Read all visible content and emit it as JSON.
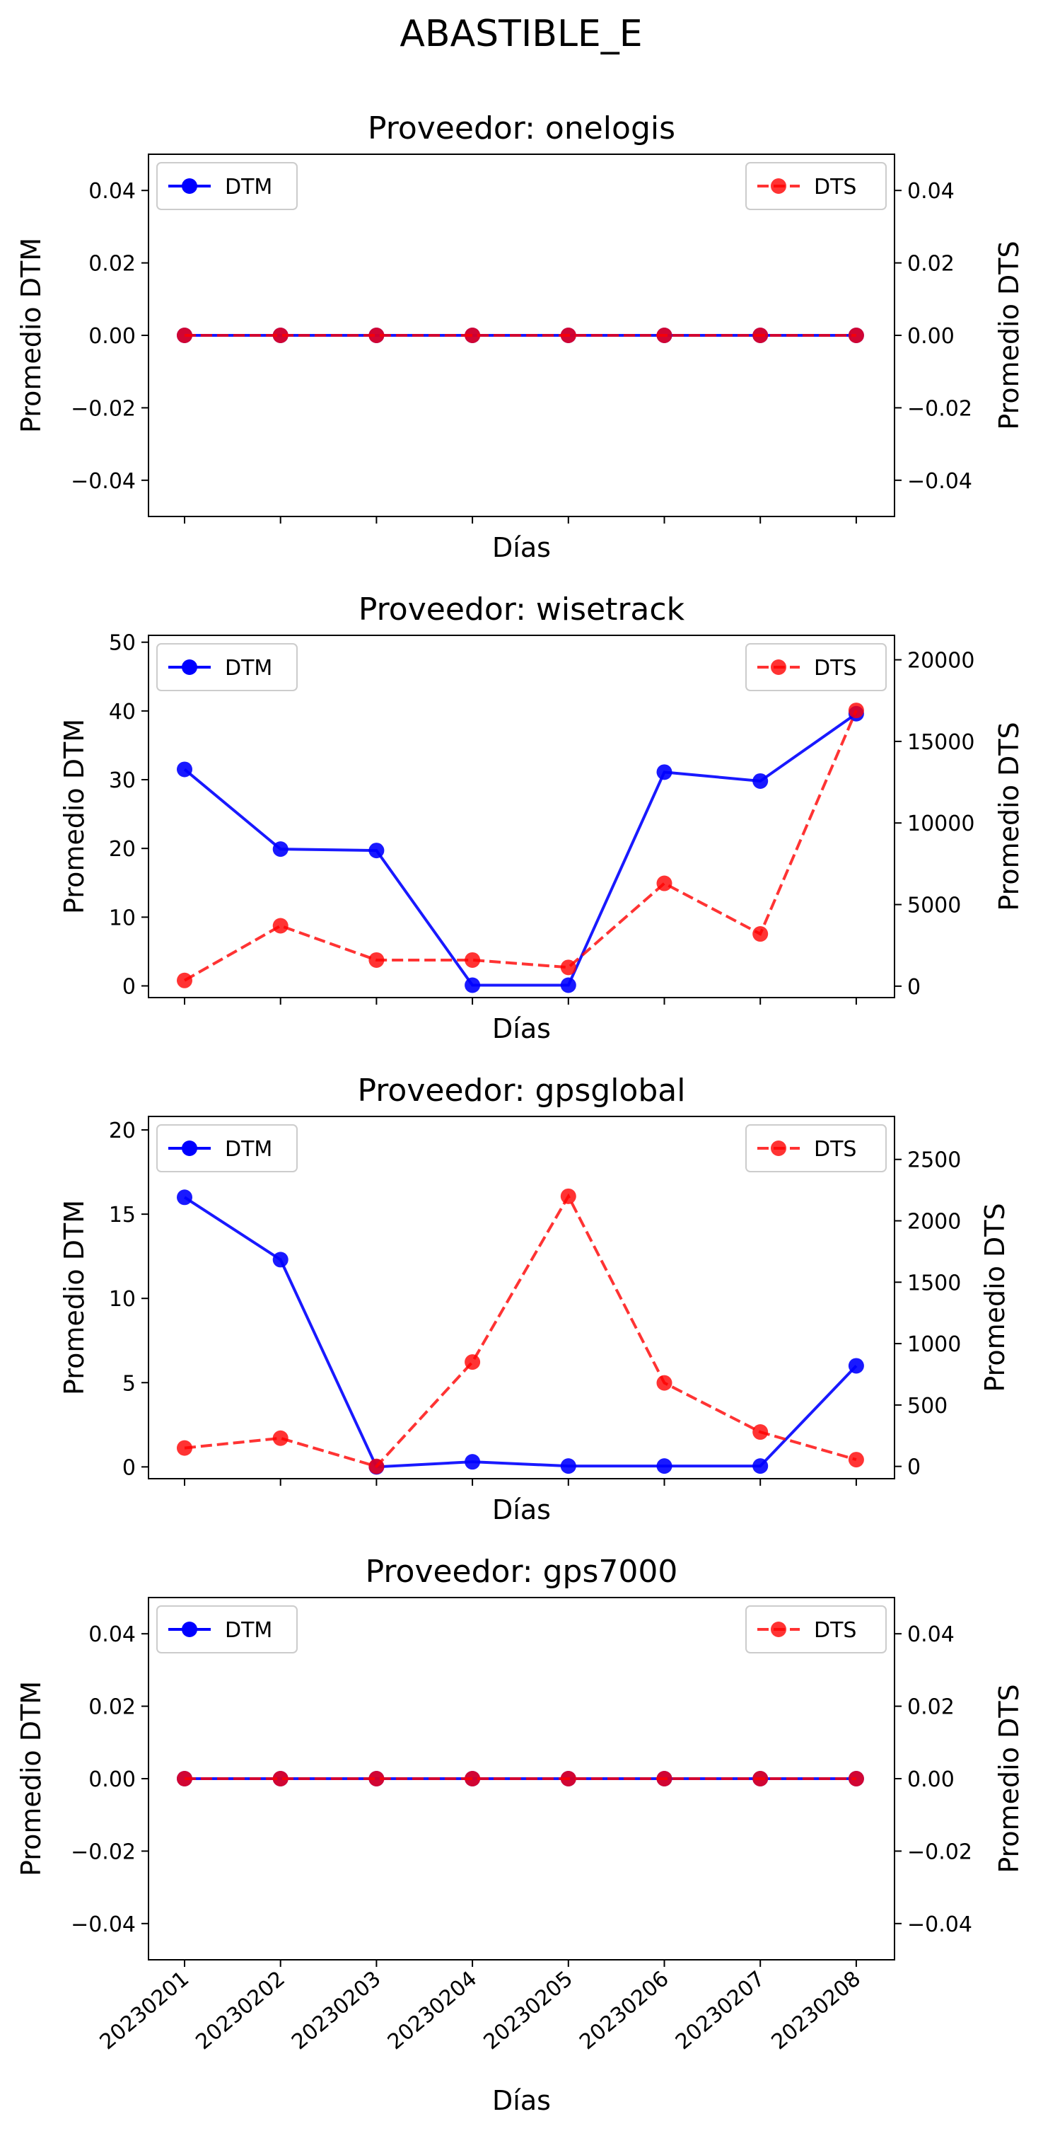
{
  "suptitle": "ABASTIBLE_E",
  "legend": {
    "dtm": "DTM",
    "dts": "DTS"
  },
  "colors": {
    "dtm": "#0000ff",
    "dts": "#ff0000"
  },
  "chart_data": [
    {
      "type": "line",
      "title": "Proveedor: onelogis",
      "xlabel": "Días",
      "ylabel_left": "Promedio DTM",
      "ylabel_right": "Promedio DTS",
      "categories": [
        "20230201",
        "20230202",
        "20230203",
        "20230204",
        "20230205",
        "20230206",
        "20230207",
        "20230208"
      ],
      "show_xticklabels": false,
      "left_axis": {
        "ylim": [
          -0.05,
          0.05
        ],
        "ticks": [
          -0.04,
          -0.02,
          0.0,
          0.02,
          0.04
        ],
        "tick_labels": [
          "−0.04",
          "−0.02",
          "0.00",
          "0.02",
          "0.04"
        ]
      },
      "right_axis": {
        "ylim": [
          -0.05,
          0.05
        ],
        "ticks": [
          -0.04,
          -0.02,
          0.0,
          0.02,
          0.04
        ],
        "tick_labels": [
          "−0.04",
          "−0.02",
          "0.00",
          "0.02",
          "0.04"
        ]
      },
      "series": [
        {
          "name": "DTM",
          "axis": "left",
          "style": "solid",
          "values": [
            0,
            0,
            0,
            0,
            0,
            0,
            0,
            0
          ]
        },
        {
          "name": "DTS",
          "axis": "right",
          "style": "dashed",
          "values": [
            0,
            0,
            0,
            0,
            0,
            0,
            0,
            0
          ]
        }
      ],
      "legend_placement": [
        "upper left",
        "upper right"
      ]
    },
    {
      "type": "line",
      "title": "Proveedor: wisetrack",
      "xlabel": "Días",
      "ylabel_left": "Promedio DTM",
      "ylabel_right": "Promedio DTS",
      "categories": [
        "20230201",
        "20230202",
        "20230203",
        "20230204",
        "20230205",
        "20230206",
        "20230207",
        "20230208"
      ],
      "show_xticklabels": false,
      "left_axis": {
        "ylim": [
          -1.7,
          51
        ],
        "ticks": [
          0,
          10,
          20,
          30,
          40,
          50
        ],
        "tick_labels": [
          "0",
          "10",
          "20",
          "30",
          "40",
          "50"
        ]
      },
      "right_axis": {
        "ylim": [
          -700,
          21500
        ],
        "ticks": [
          0,
          5000,
          10000,
          15000,
          20000
        ],
        "tick_labels": [
          "0",
          "5000",
          "10000",
          "15000",
          "20000"
        ]
      },
      "series": [
        {
          "name": "DTM",
          "axis": "left",
          "style": "solid",
          "values": [
            31.5,
            19.9,
            19.7,
            0.1,
            0.1,
            31.1,
            29.8,
            39.6
          ]
        },
        {
          "name": "DTS",
          "axis": "right",
          "style": "dashed",
          "values": [
            350,
            3700,
            1600,
            1600,
            1150,
            6300,
            3200,
            16900
          ]
        }
      ],
      "legend_placement": [
        "upper left",
        "upper right"
      ]
    },
    {
      "type": "line",
      "title": "Proveedor: gpsglobal",
      "xlabel": "Días",
      "ylabel_left": "Promedio DTM",
      "ylabel_right": "Promedio DTS",
      "categories": [
        "20230201",
        "20230202",
        "20230203",
        "20230204",
        "20230205",
        "20230206",
        "20230207",
        "20230208"
      ],
      "show_xticklabels": false,
      "left_axis": {
        "ylim": [
          -0.7,
          20.8
        ],
        "ticks": [
          0,
          5,
          10,
          15,
          20
        ],
        "tick_labels": [
          "0",
          "5",
          "10",
          "15",
          "20"
        ]
      },
      "right_axis": {
        "ylim": [
          -100,
          2850
        ],
        "ticks": [
          0,
          500,
          1000,
          1500,
          2000,
          2500
        ],
        "tick_labels": [
          "0",
          "500",
          "1000",
          "1500",
          "2000",
          "2500"
        ]
      },
      "series": [
        {
          "name": "DTM",
          "axis": "left",
          "style": "solid",
          "values": [
            16.0,
            12.3,
            0.0,
            0.3,
            0.05,
            0.05,
            0.05,
            6.0
          ]
        },
        {
          "name": "DTS",
          "axis": "right",
          "style": "dashed",
          "values": [
            150,
            230,
            0,
            850,
            2200,
            680,
            280,
            55
          ]
        }
      ],
      "legend_placement": [
        "upper left",
        "upper right"
      ]
    },
    {
      "type": "line",
      "title": "Proveedor: gps7000",
      "xlabel": "Días",
      "ylabel_left": "Promedio DTM",
      "ylabel_right": "Promedio DTS",
      "categories": [
        "20230201",
        "20230202",
        "20230203",
        "20230204",
        "20230205",
        "20230206",
        "20230207",
        "20230208"
      ],
      "show_xticklabels": true,
      "left_axis": {
        "ylim": [
          -0.05,
          0.05
        ],
        "ticks": [
          -0.04,
          -0.02,
          0.0,
          0.02,
          0.04
        ],
        "tick_labels": [
          "−0.04",
          "−0.02",
          "0.00",
          "0.02",
          "0.04"
        ]
      },
      "right_axis": {
        "ylim": [
          -0.05,
          0.05
        ],
        "ticks": [
          -0.04,
          -0.02,
          0.0,
          0.02,
          0.04
        ],
        "tick_labels": [
          "−0.04",
          "−0.02",
          "0.00",
          "0.02",
          "0.04"
        ]
      },
      "series": [
        {
          "name": "DTM",
          "axis": "left",
          "style": "solid",
          "values": [
            0,
            0,
            0,
            0,
            0,
            0,
            0,
            0
          ]
        },
        {
          "name": "DTS",
          "axis": "right",
          "style": "dashed",
          "values": [
            0,
            0,
            0,
            0,
            0,
            0,
            0,
            0
          ]
        }
      ],
      "legend_placement": [
        "upper left",
        "upper right"
      ]
    }
  ]
}
